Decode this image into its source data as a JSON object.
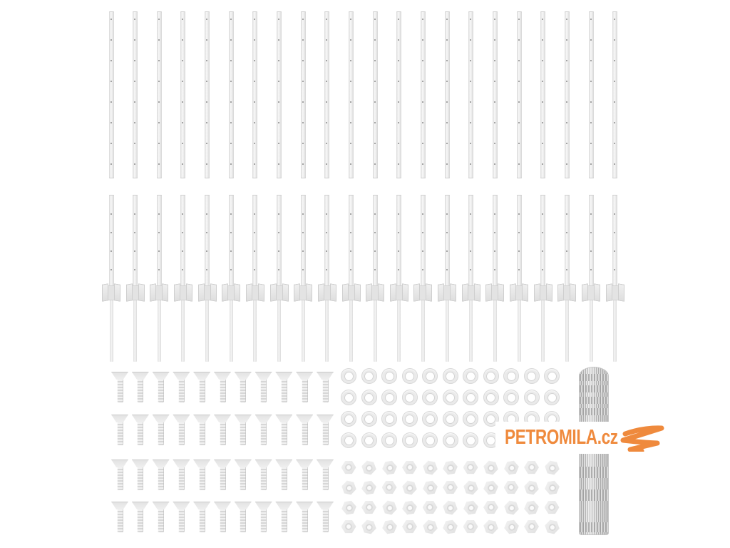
{
  "image_type": "product-photo",
  "product": {
    "description": "Fence installation kit: perforated rails, ground-anchor posts, screws, washers, hex nuts and a roll of wire mesh"
  },
  "background_color": "#FFFFFF",
  "watermark": {
    "text": "PETROMILA.cz",
    "color": "#EF8A3D",
    "icon": "snake-squiggle-icon"
  },
  "components": {
    "perforated_rails": {
      "label": "perforated flat rails",
      "count": 22
    },
    "anchor_posts": {
      "label": "posts with ground anchor wings",
      "count": 22
    },
    "countersunk_screws": {
      "label": "countersunk screws",
      "rows": 4,
      "columns": 11,
      "count": 44
    },
    "washers": {
      "label": "round washers",
      "rows": 4,
      "columns": 11,
      "count": 44
    },
    "hex_nuts": {
      "label": "hex nuts",
      "rows": 4,
      "columns": 11,
      "count": 44
    },
    "mesh_roll": {
      "label": "rolled wire mesh fencing",
      "count": 1
    }
  },
  "item_colors": {
    "metal_light": "#F5F5F5",
    "metal_mid": "#E0E0E0",
    "metal_edge": "#CFCFCF"
  }
}
